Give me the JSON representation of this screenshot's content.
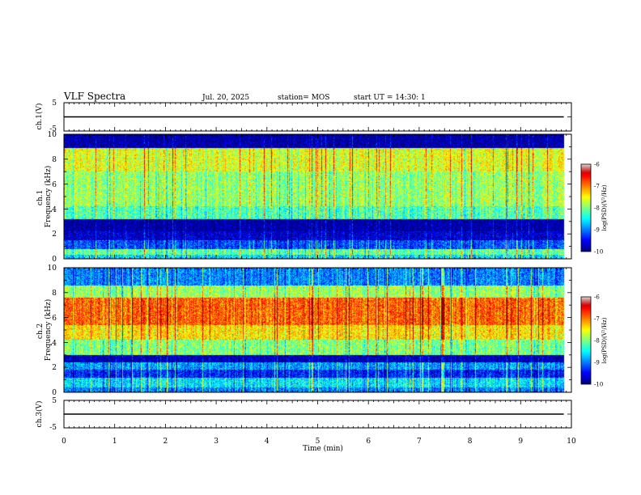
{
  "header": {
    "title": "VLF Spectra",
    "date": "Jul. 20, 2025",
    "station": "station= MOS",
    "start": "start UT =  14:30: 1"
  },
  "chart_data": [
    {
      "id": "ch1-voltage",
      "type": "line",
      "ylabel": "ch.1(V)",
      "ylim": [
        -5,
        5
      ],
      "yticks": [
        "5",
        "-5"
      ],
      "xlim": [
        0,
        10
      ],
      "series": [
        {
          "x": [
            0,
            9.85
          ],
          "y": [
            0,
            0
          ]
        }
      ]
    },
    {
      "id": "ch1-spectrogram",
      "type": "heatmap",
      "ylabel": "ch.1\nFrequency (kHz)",
      "ylim": [
        0,
        10
      ],
      "yticks": [
        "0",
        "2",
        "4",
        "6",
        "8",
        "10"
      ],
      "xlim": [
        0,
        10
      ],
      "data_extent_min": 9.85,
      "bands": [
        {
          "f": [
            0.0,
            0.35
          ],
          "level": -8.6
        },
        {
          "f": [
            0.35,
            0.8
          ],
          "level": -8.1
        },
        {
          "f": [
            0.8,
            1.5
          ],
          "level": -9.2
        },
        {
          "f": [
            1.5,
            2.2
          ],
          "level": -9.7
        },
        {
          "f": [
            2.2,
            3.2
          ],
          "level": -9.9
        },
        {
          "f": [
            3.2,
            4.2
          ],
          "level": -8.2
        },
        {
          "f": [
            4.2,
            7.0
          ],
          "level": -7.9
        },
        {
          "f": [
            7.0,
            8.9
          ],
          "level": -7.6
        },
        {
          "f": [
            8.9,
            10.0
          ],
          "level": -9.9
        }
      ],
      "colorbar": {
        "range": [
          -10,
          -6
        ],
        "ticks": [
          "-6",
          "-7",
          "-8",
          "-9",
          "-10"
        ],
        "label": "log(PSD)(V²/Hz)"
      }
    },
    {
      "id": "ch2-spectrogram",
      "type": "heatmap",
      "ylabel": "ch.2\nFrequency (kHz)",
      "ylim": [
        0,
        10
      ],
      "yticks": [
        "0",
        "2",
        "4",
        "6",
        "8",
        "10"
      ],
      "xlim": [
        0,
        10
      ],
      "data_extent_min": 9.85,
      "bands": [
        {
          "f": [
            0.0,
            0.4
          ],
          "level": -9.0
        },
        {
          "f": [
            0.4,
            1.2
          ],
          "level": -8.6
        },
        {
          "f": [
            1.2,
            1.8
          ],
          "level": -9.4
        },
        {
          "f": [
            1.8,
            2.4
          ],
          "level": -8.9
        },
        {
          "f": [
            2.4,
            3.0
          ],
          "level": -9.8
        },
        {
          "f": [
            3.0,
            4.2
          ],
          "level": -8.0
        },
        {
          "f": [
            4.2,
            5.4
          ],
          "level": -7.4
        },
        {
          "f": [
            5.4,
            7.6
          ],
          "level": -6.9
        },
        {
          "f": [
            7.6,
            8.6
          ],
          "level": -7.9
        },
        {
          "f": [
            8.6,
            10.0
          ],
          "level": -9.0
        }
      ],
      "colorbar": {
        "range": [
          -10,
          -6
        ],
        "ticks": [
          "-6",
          "-7",
          "-8",
          "-9",
          "-10"
        ],
        "label": "log(PSD)(V²/Hz)"
      }
    },
    {
      "id": "ch3-voltage",
      "type": "line",
      "ylabel": "ch.3(V)",
      "ylim": [
        -5,
        5
      ],
      "yticks": [
        "5",
        "-5"
      ],
      "xlim": [
        0,
        10
      ],
      "xlabel": "Time (min)",
      "xticks": [
        "0",
        "1",
        "2",
        "3",
        "4",
        "5",
        "6",
        "7",
        "8",
        "9",
        "10"
      ],
      "series": [
        {
          "x": [
            0,
            9.85
          ],
          "y": [
            0,
            0
          ]
        }
      ]
    }
  ]
}
